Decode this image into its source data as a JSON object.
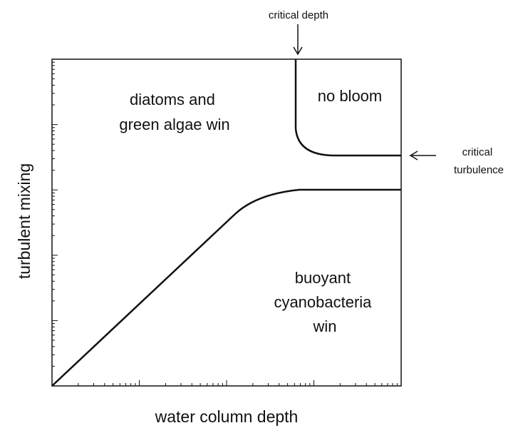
{
  "annotations": {
    "critical_depth": "critical depth",
    "critical_turbulence": [
      "critical",
      "turbulence"
    ]
  },
  "regions": {
    "diatoms": [
      "diatoms and",
      "green algae win"
    ],
    "no_bloom": "no bloom",
    "cyanobacteria": [
      "buoyant",
      "cyanobacteria",
      "win"
    ]
  },
  "axes": {
    "x_label": "water column depth",
    "y_label": "turbulent mixing"
  }
}
